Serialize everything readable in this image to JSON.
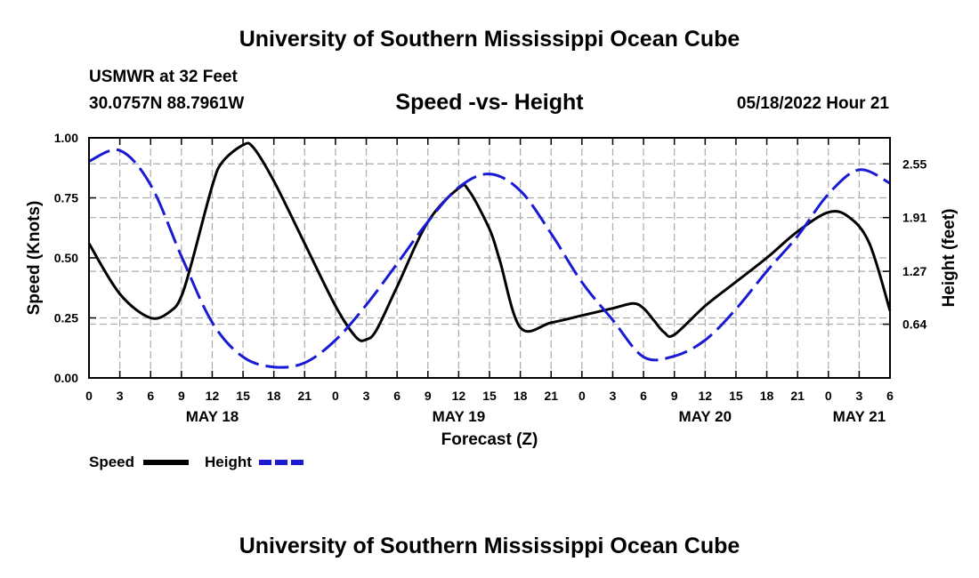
{
  "header": {
    "title": "University of Southern Mississippi Ocean Cube",
    "station": "USMWR at 32 Feet",
    "coordinates": "30.0757N  88.7961W",
    "chart_title": "Speed -vs- Height",
    "valid_time": "05/18/2022 Hour 21"
  },
  "footer": {
    "title": "University of Southern Mississippi Ocean Cube"
  },
  "colors": {
    "speed": "#000000",
    "height": "#1a1ad4",
    "grid": "#aaaaaa"
  },
  "chart_data": {
    "type": "line",
    "title": "Speed -vs- Height",
    "xlabel": "Forecast (Z)",
    "ylabel": "Speed (Knots)",
    "y2label": "Height (feet)",
    "xlim": [
      0,
      78
    ],
    "ylim": [
      0,
      1
    ],
    "y2lim": [
      0,
      2.86
    ],
    "x_ticks": [
      0,
      3,
      6,
      9,
      12,
      15,
      18,
      21,
      24,
      27,
      30,
      33,
      36,
      39,
      42,
      45,
      48,
      51,
      54,
      57,
      60,
      63,
      66,
      69,
      72,
      75,
      78
    ],
    "x_tick_labels": [
      "0",
      "3",
      "6",
      "9",
      "12",
      "15",
      "18",
      "21",
      "0",
      "3",
      "6",
      "9",
      "12",
      "15",
      "18",
      "21",
      "0",
      "3",
      "6",
      "9",
      "12",
      "15",
      "18",
      "21",
      "0",
      "3",
      "6"
    ],
    "y_ticks": [
      0,
      0.25,
      0.5,
      0.75,
      1.0
    ],
    "y_tick_labels": [
      "0.00",
      "0.25",
      "0.50",
      "0.75",
      "1.00"
    ],
    "y2_ticks": [
      0.64,
      1.27,
      1.91,
      2.55
    ],
    "y2_tick_labels": [
      "0.64",
      "1.27",
      "1.91",
      "2.55"
    ],
    "date_labels": [
      {
        "x": 12,
        "label": "MAY 18"
      },
      {
        "x": 36,
        "label": "MAY 19"
      },
      {
        "x": 60,
        "label": "MAY 20"
      },
      {
        "x": 75,
        "label": "MAY 21"
      }
    ],
    "legend": [
      {
        "name": "Speed",
        "style": "solid"
      },
      {
        "name": "Height",
        "style": "dashed"
      }
    ],
    "series": [
      {
        "name": "Speed",
        "axis": "left",
        "style": "solid",
        "x": [
          0,
          3,
          6,
          8,
          9,
          10,
          12,
          13,
          15,
          16,
          18,
          21,
          24,
          26,
          27,
          28,
          30,
          33,
          36,
          37,
          39,
          40,
          42,
          45,
          48,
          51,
          53,
          54,
          55,
          56,
          57,
          60,
          63,
          66,
          69,
          72,
          74,
          76,
          78
        ],
        "y": [
          0.56,
          0.35,
          0.25,
          0.28,
          0.34,
          0.48,
          0.8,
          0.9,
          0.97,
          0.96,
          0.82,
          0.56,
          0.3,
          0.17,
          0.16,
          0.2,
          0.38,
          0.65,
          0.79,
          0.78,
          0.62,
          0.49,
          0.21,
          0.23,
          0.26,
          0.29,
          0.31,
          0.29,
          0.24,
          0.19,
          0.18,
          0.3,
          0.4,
          0.5,
          0.61,
          0.69,
          0.67,
          0.56,
          0.28
        ]
      },
      {
        "name": "Height",
        "axis": "right",
        "style": "dashed",
        "x": [
          0,
          3,
          6,
          9,
          12,
          15,
          18,
          21,
          24,
          27,
          30,
          33,
          36,
          39,
          42,
          45,
          48,
          51,
          54,
          57,
          60,
          63,
          66,
          69,
          72,
          75,
          78
        ],
        "y": [
          2.58,
          2.71,
          2.3,
          1.45,
          0.66,
          0.25,
          0.13,
          0.18,
          0.45,
          0.87,
          1.36,
          1.86,
          2.27,
          2.43,
          2.23,
          1.72,
          1.14,
          0.69,
          0.25,
          0.26,
          0.45,
          0.82,
          1.27,
          1.69,
          2.19,
          2.48,
          2.32
        ]
      }
    ]
  }
}
